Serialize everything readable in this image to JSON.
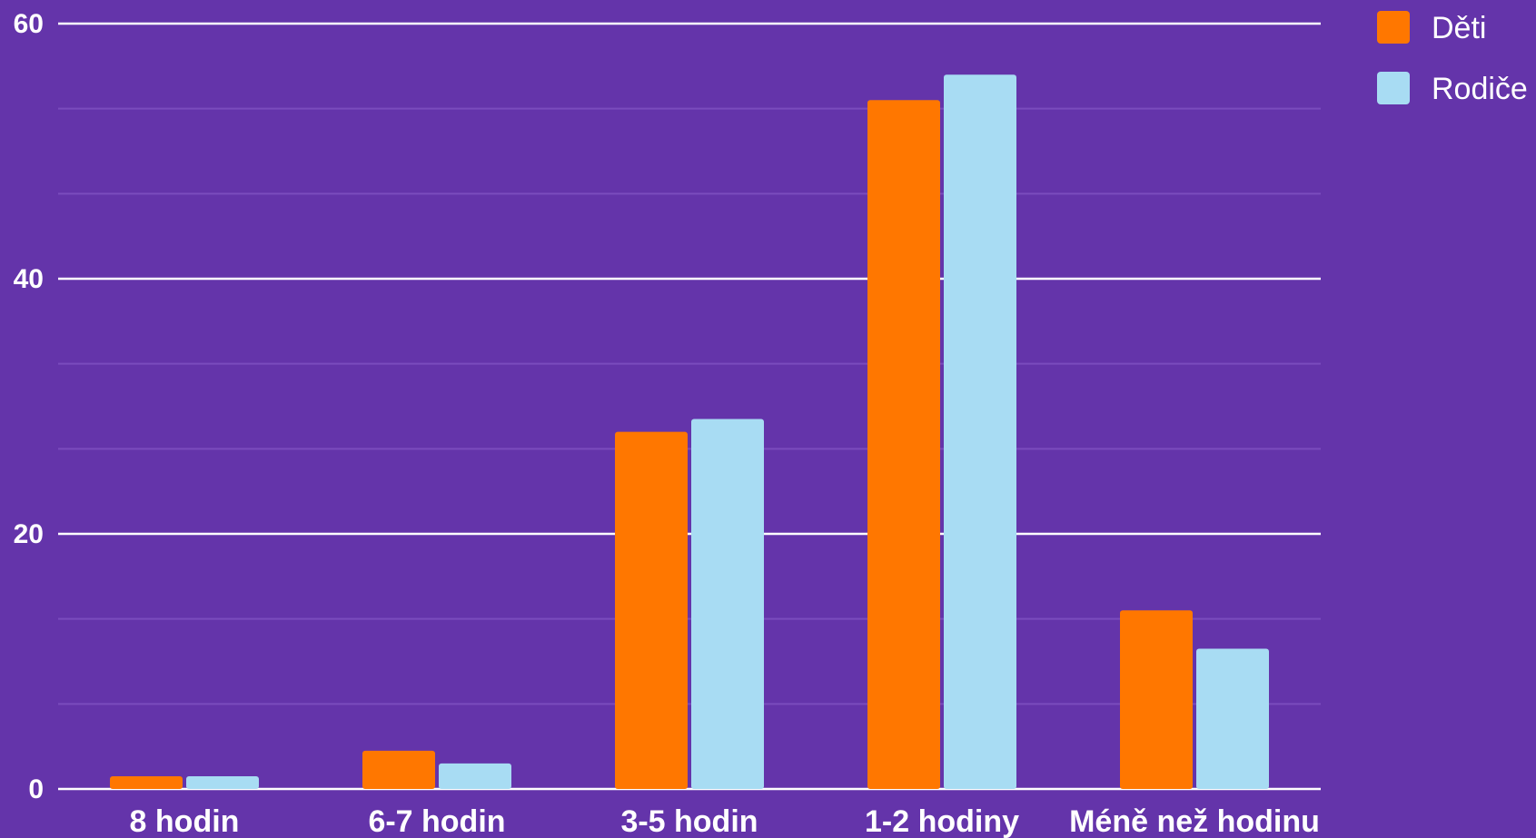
{
  "chart_data": {
    "type": "bar",
    "categories": [
      "8 hodin",
      "6-7 hodin",
      "3-5 hodin",
      "1-2 hodiny",
      "Méně než hodinu"
    ],
    "series": [
      {
        "name": "Děti",
        "values": [
          1,
          3,
          28,
          54,
          14
        ],
        "color": "#ff7700"
      },
      {
        "name": "Rodiče",
        "values": [
          1,
          2,
          29,
          56,
          11
        ],
        "color": "#a8dcf3"
      }
    ],
    "title": "",
    "xlabel": "",
    "ylabel": "",
    "ylim": [
      0,
      60
    ],
    "yticks": [
      0,
      20,
      40,
      60
    ],
    "grid": true,
    "legend": "top-right"
  },
  "colors": {
    "background": "#6434aa",
    "major_grid": "#ffffff",
    "minor_grid": "#7a4cbd",
    "text": "#ffffff"
  }
}
